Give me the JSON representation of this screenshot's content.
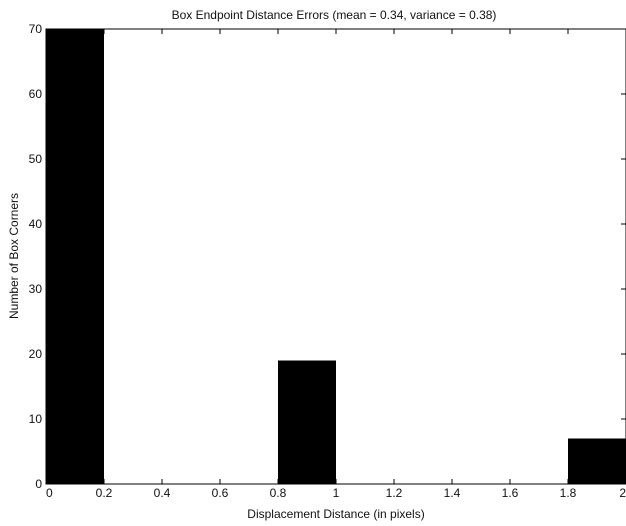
{
  "chart_data": {
    "type": "bar",
    "title": "Box Endpoint Distance Errors (mean = 0.34, variance = 0.38)",
    "xlabel": "Displacement Distance (in pixels)",
    "ylabel": "Number of Box Corners",
    "xlim": [
      0,
      2
    ],
    "ylim": [
      0,
      70
    ],
    "x_ticks": [
      "0",
      "0.2",
      "0.4",
      "0.6",
      "0.8",
      "1",
      "1.2",
      "1.4",
      "1.6",
      "1.8",
      "2"
    ],
    "y_ticks": [
      "0",
      "10",
      "20",
      "30",
      "40",
      "50",
      "60",
      "70"
    ],
    "bins": [
      {
        "x0": 0.0,
        "x1": 0.2,
        "value": 70
      },
      {
        "x0": 0.8,
        "x1": 1.0,
        "value": 19
      },
      {
        "x0": 1.8,
        "x1": 2.0,
        "value": 7
      }
    ],
    "grid": false,
    "legend": "none",
    "bar_color": "#000000"
  }
}
